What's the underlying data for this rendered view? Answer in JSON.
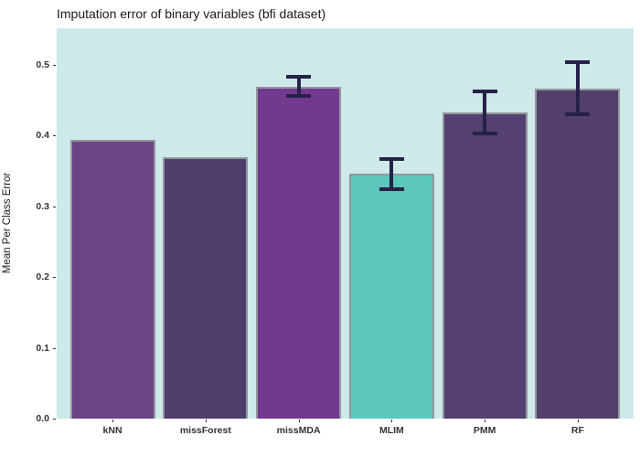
{
  "title": "Imputation error of binary variables (bfi dataset)",
  "ylabel": "Mean Per Class Error",
  "chart_data": {
    "type": "bar",
    "title": "Imputation error of binary variables (bfi dataset)",
    "xlabel": "",
    "ylabel": "Mean Per Class Error",
    "categories": [
      "kNN",
      "missForest",
      "missMDA",
      "MLIM",
      "PMM",
      "RF"
    ],
    "values": [
      0.393,
      0.369,
      0.469,
      0.346,
      0.432,
      0.466
    ],
    "error_bars": [
      null,
      null,
      {
        "low": 0.456,
        "high": 0.482
      },
      {
        "low": 0.324,
        "high": 0.366
      },
      {
        "low": 0.403,
        "high": 0.462
      },
      {
        "low": 0.43,
        "high": 0.503
      }
    ],
    "bar_colors": [
      "#6B4486",
      "#4F3D6B",
      "#73398F",
      "#5CC8BB",
      "#544171",
      "#53406A"
    ],
    "bar_border_color": "#94979b",
    "error_bar_color": "#262148",
    "panel_background": "#CEE9E9",
    "yticks": [
      0.0,
      0.1,
      0.2,
      0.3,
      0.4,
      0.5
    ],
    "ytick_labels": [
      "0.0",
      "0.1",
      "0.2",
      "0.3",
      "0.4",
      "0.5"
    ],
    "ylim": [
      0,
      0.551
    ],
    "grid": false,
    "legend": false
  }
}
